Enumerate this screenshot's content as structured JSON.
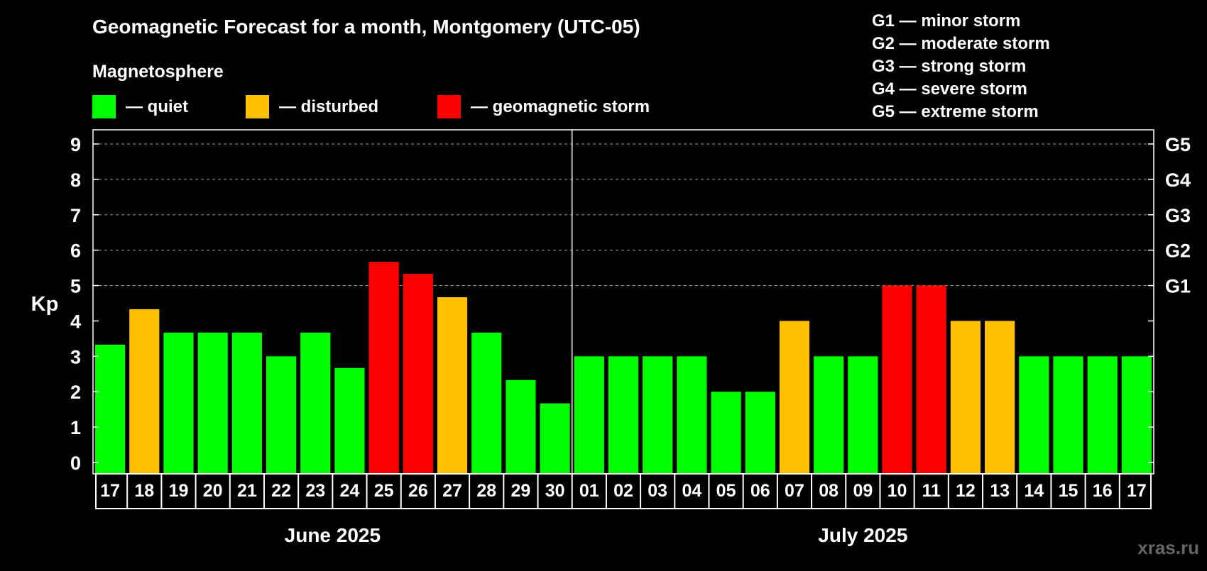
{
  "chart_data": {
    "type": "bar",
    "title": "Geomagnetic Forecast for a month, Montgomery (UTC-05)",
    "legend_title": "Magnetosphere",
    "legend": [
      {
        "key": "quiet",
        "label": "— quiet",
        "color": "#00ff00"
      },
      {
        "key": "disturbed",
        "label": "— disturbed",
        "color": "#ffc000"
      },
      {
        "key": "storm",
        "label": "— geomagnetic storm",
        "color": "#ff0000"
      }
    ],
    "storm_scale": [
      "G1 — minor storm",
      "G2 — moderate storm",
      "G3 — strong storm",
      "G4 — severe storm",
      "G5 — extreme storm"
    ],
    "ylabel": "Kp",
    "ylim": [
      0,
      9
    ],
    "yticks": [
      0,
      1,
      2,
      3,
      4,
      5,
      6,
      7,
      8,
      9
    ],
    "right_ticks": [
      {
        "kp": 5,
        "label": "G1"
      },
      {
        "kp": 6,
        "label": "G2"
      },
      {
        "kp": 7,
        "label": "G3"
      },
      {
        "kp": 8,
        "label": "G4"
      },
      {
        "kp": 9,
        "label": "G5"
      }
    ],
    "gridlines": [
      5,
      6,
      7,
      8,
      9
    ],
    "categories": [
      "17",
      "18",
      "19",
      "20",
      "21",
      "22",
      "23",
      "24",
      "25",
      "26",
      "27",
      "28",
      "29",
      "30",
      "01",
      "02",
      "03",
      "04",
      "05",
      "06",
      "07",
      "08",
      "09",
      "10",
      "11",
      "12",
      "13",
      "14",
      "15",
      "16",
      "17"
    ],
    "values": [
      3.33,
      4.33,
      3.67,
      3.67,
      3.67,
      3.0,
      3.67,
      2.67,
      5.67,
      5.33,
      4.67,
      3.67,
      2.33,
      1.67,
      3,
      3,
      3,
      3,
      2,
      2,
      4,
      3,
      3,
      5,
      5,
      4,
      4,
      3,
      3,
      3,
      3
    ],
    "levels": [
      "quiet",
      "disturbed",
      "quiet",
      "quiet",
      "quiet",
      "quiet",
      "quiet",
      "quiet",
      "storm",
      "storm",
      "disturbed",
      "quiet",
      "quiet",
      "quiet",
      "quiet",
      "quiet",
      "quiet",
      "quiet",
      "quiet",
      "quiet",
      "disturbed",
      "quiet",
      "quiet",
      "storm",
      "storm",
      "disturbed",
      "disturbed",
      "quiet",
      "quiet",
      "quiet",
      "quiet"
    ],
    "months": [
      {
        "label": "June 2025",
        "days": 14
      },
      {
        "label": "July 2025",
        "days": 17
      }
    ]
  },
  "watermark": "xras.ru"
}
